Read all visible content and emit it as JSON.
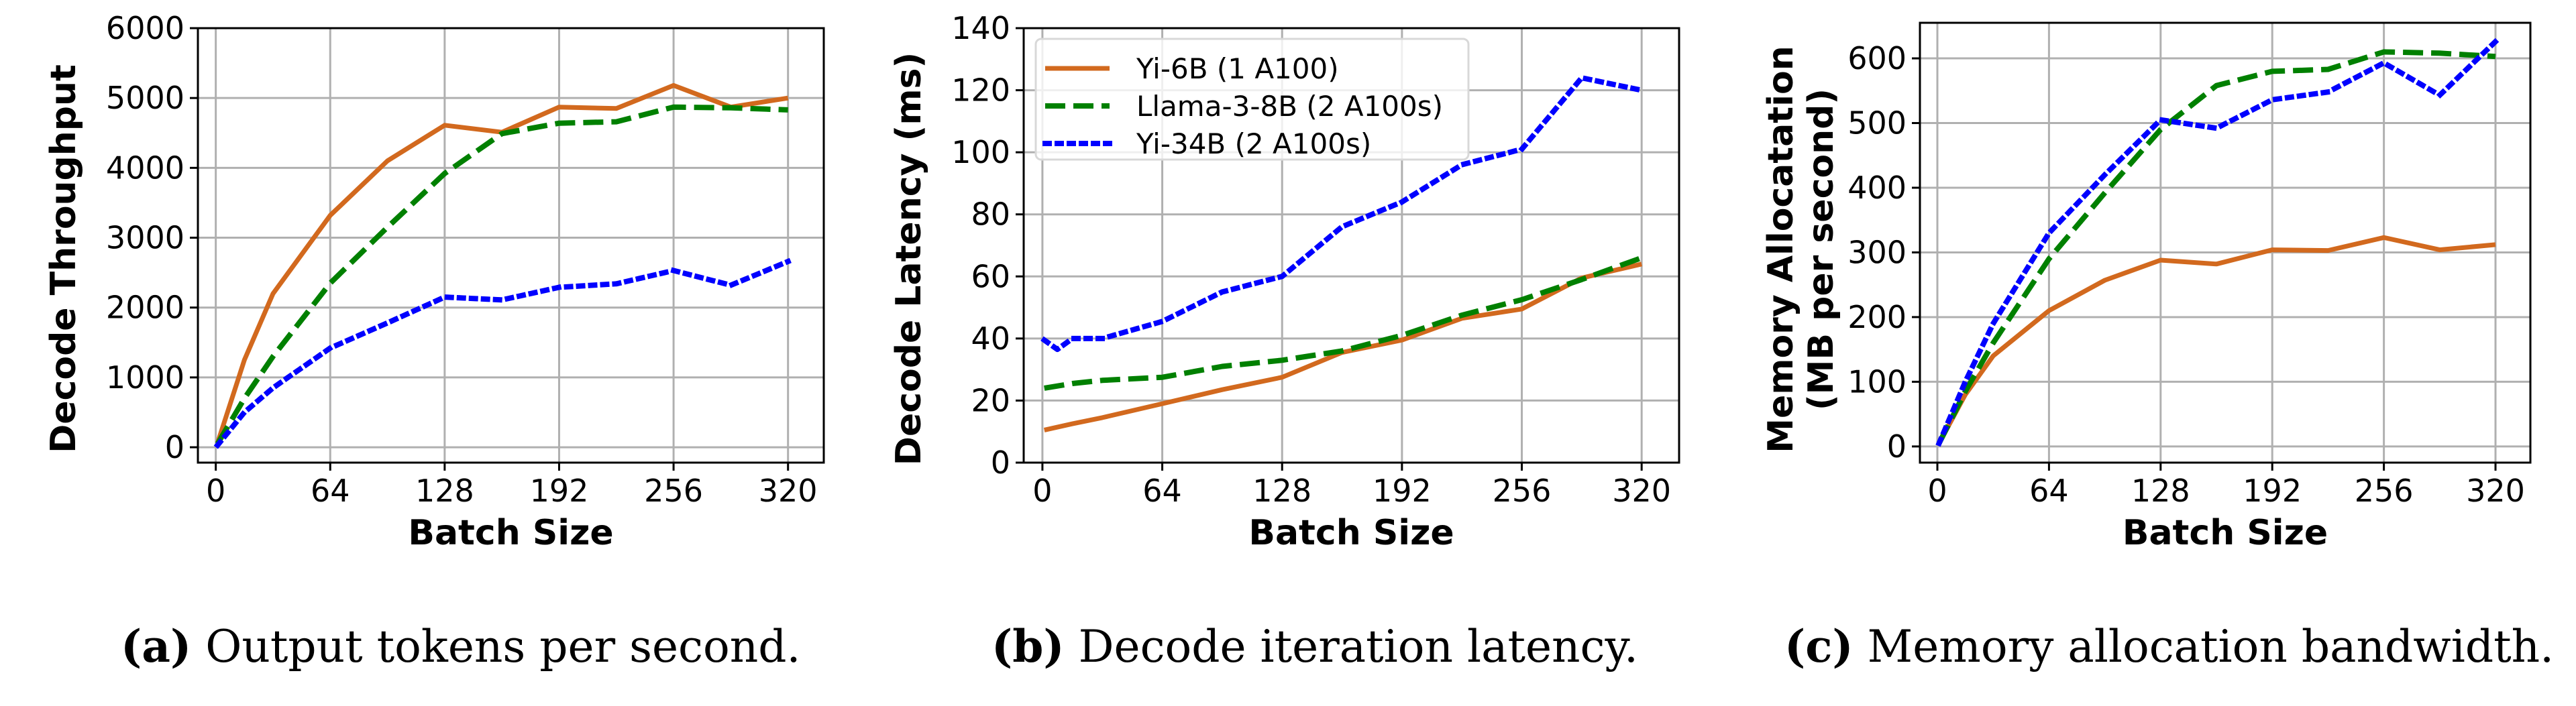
{
  "legend": [
    {
      "label": "Yi-6B (1 A100)",
      "color": "#d2691e",
      "style": "solid"
    },
    {
      "label": "Llama-3-8B (2 A100s)",
      "color": "#008000",
      "style": "dashed"
    },
    {
      "label": "Yi-34B (2 A100s)",
      "color": "#0000ff",
      "style": "dotted"
    }
  ],
  "captions": [
    {
      "tag": "(a)",
      "text": "Output tokens per second."
    },
    {
      "tag": "(b)",
      "text": "Decode iteration latency."
    },
    {
      "tag": "(c)",
      "text": "Memory allocation bandwidth."
    }
  ],
  "chart_data": [
    {
      "type": "line",
      "title": "",
      "xlabel": "Batch Size",
      "ylabel": "Decode Throughput",
      "xlim": [
        -10,
        340
      ],
      "ylim": [
        -220,
        6000
      ],
      "xticks": [
        0,
        64,
        128,
        192,
        256,
        320
      ],
      "yticks": [
        0,
        1000,
        2000,
        3000,
        4000,
        5000,
        6000
      ],
      "grid": true,
      "legend": "none",
      "series": [
        {
          "name": "Yi-6B (1 A100)",
          "x": [
            1,
            16,
            32,
            64,
            96,
            128,
            160,
            192,
            224,
            256,
            288,
            320
          ],
          "values": [
            60,
            1250,
            2200,
            3320,
            4100,
            4610,
            4510,
            4870,
            4850,
            5180,
            4870,
            5000
          ]
        },
        {
          "name": "Llama-3-8B (2 A100s)",
          "x": [
            1,
            16,
            32,
            64,
            96,
            128,
            160,
            192,
            224,
            256,
            288,
            320
          ],
          "values": [
            50,
            700,
            1300,
            2350,
            3150,
            3920,
            4490,
            4640,
            4660,
            4870,
            4860,
            4830
          ]
        },
        {
          "name": "Yi-34B (2 A100s)",
          "x": [
            1,
            16,
            32,
            64,
            96,
            128,
            160,
            192,
            224,
            256,
            288,
            320
          ],
          "values": [
            30,
            500,
            850,
            1420,
            1780,
            2150,
            2110,
            2290,
            2340,
            2530,
            2320,
            2660
          ]
        }
      ]
    },
    {
      "type": "line",
      "title": "",
      "xlabel": "Batch Size",
      "ylabel": "Decode Latency (ms)",
      "xlim": [
        -10,
        340
      ],
      "ylim": [
        0,
        140
      ],
      "xticks": [
        0,
        64,
        128,
        192,
        256,
        320
      ],
      "yticks": [
        0,
        20,
        40,
        60,
        80,
        100,
        120,
        140
      ],
      "grid": true,
      "legend": "top-left",
      "series": [
        {
          "name": "Yi-6B (1 A100)",
          "x": [
            1,
            16,
            32,
            64,
            96,
            128,
            160,
            192,
            224,
            256,
            288,
            320
          ],
          "values": [
            10.5,
            12.5,
            14.5,
            19,
            23.5,
            27.5,
            35.5,
            39.5,
            46.5,
            49.5,
            59.5,
            64
          ]
        },
        {
          "name": "Llama-3-8B (2 A100s)",
          "x": [
            1,
            16,
            32,
            64,
            96,
            128,
            160,
            192,
            224,
            256,
            288,
            320
          ],
          "values": [
            24,
            25.5,
            26.5,
            27.5,
            31,
            33,
            36,
            41,
            47.5,
            52.5,
            59,
            66
          ]
        },
        {
          "name": "Yi-34B (2 A100s)",
          "x": [
            1,
            8,
            16,
            32,
            64,
            96,
            128,
            160,
            192,
            224,
            256,
            288,
            320
          ],
          "values": [
            39.5,
            36.5,
            40,
            40,
            45.5,
            55,
            60,
            76,
            84,
            96,
            101,
            124,
            120
          ]
        }
      ]
    },
    {
      "type": "line",
      "title": "",
      "xlabel": "Batch Size",
      "ylabel": "Memory Allocatation (MB per second)",
      "xlim": [
        -10,
        340
      ],
      "ylim": [
        -25,
        655
      ],
      "xticks": [
        0,
        64,
        128,
        192,
        256,
        320
      ],
      "yticks": [
        0,
        100,
        200,
        300,
        400,
        500,
        600
      ],
      "grid": true,
      "legend": "none",
      "series": [
        {
          "name": "Yi-6B (1 A100)",
          "x": [
            1,
            16,
            32,
            64,
            96,
            128,
            160,
            192,
            224,
            256,
            288,
            320
          ],
          "values": [
            5,
            80,
            140,
            210,
            257,
            288,
            282,
            304,
            303,
            323,
            304,
            312
          ]
        },
        {
          "name": "Llama-3-8B (2 A100s)",
          "x": [
            1,
            16,
            32,
            64,
            96,
            128,
            160,
            192,
            224,
            256,
            288,
            320
          ],
          "values": [
            5,
            85,
            160,
            290,
            392,
            490,
            558,
            580,
            583,
            610,
            608,
            603
          ]
        },
        {
          "name": "Yi-34B (2 A100s)",
          "x": [
            1,
            16,
            32,
            64,
            96,
            128,
            160,
            192,
            224,
            256,
            288,
            320
          ],
          "values": [
            5,
            100,
            190,
            330,
            420,
            505,
            492,
            536,
            548,
            593,
            543,
            626
          ]
        }
      ]
    }
  ]
}
